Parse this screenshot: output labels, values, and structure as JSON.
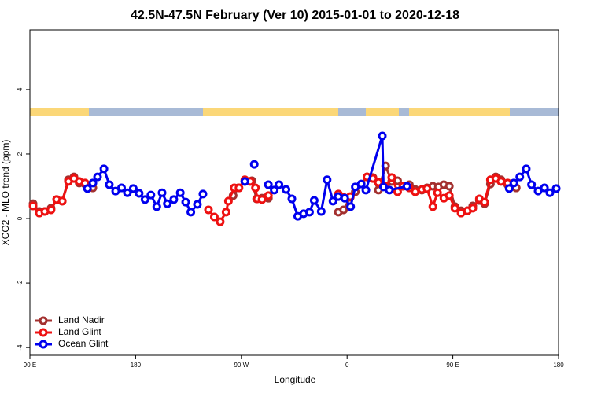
{
  "chart_data": {
    "type": "line",
    "title": "42.5N-47.5N February (Ver 10)   2015-01-01 to 2020-12-18",
    "x_label": "Longitude",
    "y_label": "XCO2 - MLO trend (ppm)",
    "xlim": [
      90,
      540
    ],
    "xticks": [
      {
        "value": 90,
        "label": "90 E"
      },
      180,
      {
        "value": 270,
        "label": "90 W"
      },
      {
        "value": 360,
        "label": "0"
      },
      {
        "value": 450,
        "label": "90 E"
      },
      {
        "value": 540,
        "label": "180"
      }
    ],
    "ylim": [
      -4.24,
      5.85
    ],
    "yticks": [
      -4,
      -2,
      0,
      2,
      4
    ],
    "legend": "bottom-left",
    "series": [
      {
        "name": "Land Nadir",
        "color": "#a3302f",
        "x": [
          92.7,
          98,
          102.7,
          108,
          112.8,
          117.5,
          122.8,
          127.5,
          132,
          137,
          143.6,
          null,
          263,
          267.5,
          273,
          279,
          283,
          287.6,
          293,
          null,
          352.6,
          357,
          362.7,
          367,
          377,
          382,
          386.7,
          392.8,
          398,
          403,
          407.6,
          413,
          418,
          423.7,
          428,
          433,
          437.7,
          442.4,
          447,
          451.8,
          457,
          462.5,
          467,
          472.6,
          477,
          482,
          486.6,
          491,
          496.7,
          504
        ],
        "values": [
          0.46,
          0.22,
          0.22,
          0.32,
          0.59,
          0.54,
          1.2,
          1.29,
          1.1,
          1.07,
          0.95,
          null,
          0.71,
          0.95,
          1.15,
          1.17,
          0.61,
          0.63,
          0.63,
          null,
          0.2,
          0.27,
          0.66,
          0.83,
          1.29,
          1.27,
          0.88,
          1.63,
          1.15,
          1.17,
          1.0,
          1.05,
          0.9,
          0.88,
          0.95,
          1.0,
          0.98,
          1.05,
          1.0,
          0.37,
          0.24,
          0.24,
          0.39,
          0.56,
          0.46,
          1.07,
          1.29,
          1.2,
          1.05,
          0.95
        ]
      },
      {
        "name": "Land Glint",
        "color": "#ee1111",
        "x": [
          92.7,
          98,
          102.7,
          108,
          112.8,
          117.5,
          122.8,
          127.5,
          132,
          137,
          null,
          242,
          247,
          252,
          257,
          259,
          264,
          268,
          273,
          277.6,
          282,
          283.6,
          287.6,
          293,
          null,
          352.6,
          357,
          362.7,
          null,
          377,
          382,
          386.7,
          392.8,
          398,
          403,
          407.6,
          413,
          418,
          423.7,
          428,
          433,
          437,
          442.4,
          447,
          451.8,
          457,
          462.5,
          467,
          472.6,
          477,
          482,
          486.6,
          491,
          496.7
        ],
        "values": [
          0.39,
          0.17,
          0.22,
          0.27,
          0.59,
          0.54,
          1.15,
          1.24,
          1.15,
          1.1,
          null,
          0.27,
          0.05,
          -0.1,
          0.2,
          0.54,
          0.95,
          0.95,
          1.2,
          1.15,
          0.95,
          0.61,
          0.59,
          0.71,
          null,
          0.76,
          0.66,
          0.68,
          null,
          1.29,
          1.24,
          1.12,
          1.0,
          1.27,
          0.83,
          1.0,
          0.95,
          0.83,
          0.9,
          0.93,
          0.37,
          0.8,
          0.63,
          0.71,
          0.32,
          0.17,
          0.24,
          0.32,
          0.61,
          0.51,
          1.2,
          1.24,
          1.15,
          1.1
        ]
      },
      {
        "name": "Ocean Glint",
        "color": "#0000ee",
        "x": [
          139,
          143.6,
          147.6,
          153,
          157.6,
          163,
          168,
          173,
          178,
          183,
          188,
          193,
          198,
          202.5,
          207,
          212.5,
          218,
          222.6,
          227,
          232.6,
          237.3,
          null,
          273,
          null,
          281,
          null,
          293,
          298,
          302,
          308,
          313,
          318,
          323,
          328,
          332,
          338,
          343,
          348,
          352.5,
          358,
          363,
          367,
          372,
          376,
          390,
          391,
          396,
          411,
          null,
          498,
          502,
          507,
          512.5,
          517,
          522.6,
          528,
          532.6,
          538
        ],
        "values": [
          0.93,
          1.1,
          1.29,
          1.54,
          1.05,
          0.85,
          0.95,
          0.8,
          0.93,
          0.78,
          0.59,
          0.73,
          0.37,
          0.8,
          0.46,
          0.59,
          0.8,
          0.51,
          0.2,
          0.44,
          0.76,
          null,
          1.15,
          null,
          1.68,
          null,
          1.05,
          0.88,
          1.05,
          0.9,
          0.61,
          0.07,
          0.15,
          0.2,
          0.56,
          0.22,
          1.2,
          0.54,
          0.68,
          0.63,
          0.37,
          0.98,
          1.07,
          0.88,
          2.56,
          0.98,
          0.88,
          1.0,
          null,
          0.93,
          1.1,
          1.29,
          1.54,
          1.05,
          0.85,
          0.95,
          0.8,
          0.93
        ]
      }
    ]
  }
}
